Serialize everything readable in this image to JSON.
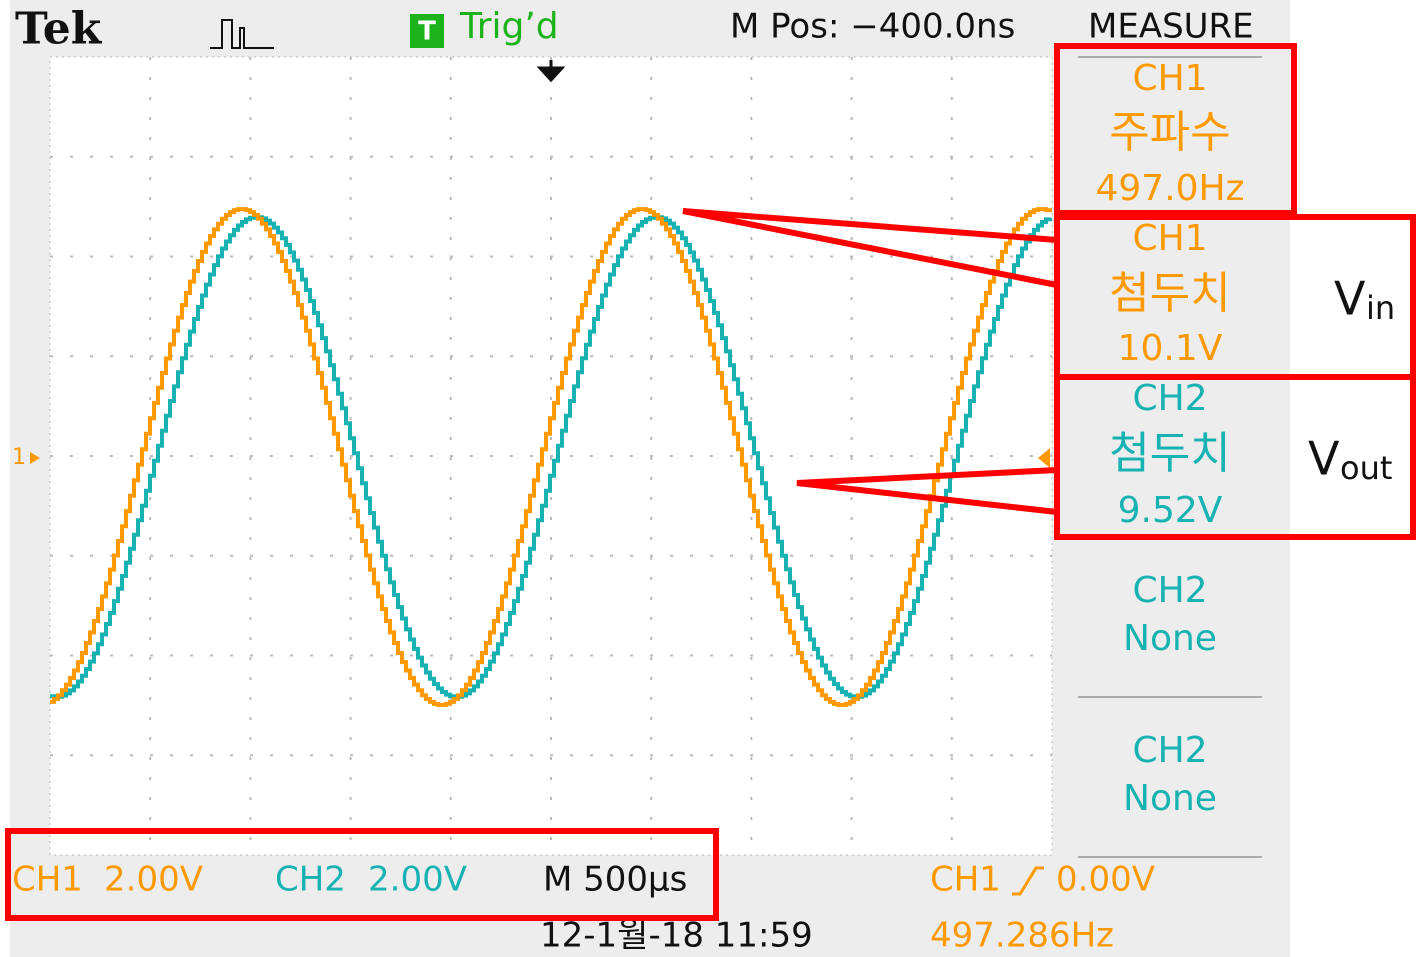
{
  "header": {
    "brand": "Tek",
    "trigger_icon": "T",
    "trigger_status": "Trig’d",
    "m_pos": "M Pos: −400.0ns",
    "menu_title": "MEASURE"
  },
  "markers": {
    "ch1_marker": "1"
  },
  "measurements": [
    {
      "channel": "CH1",
      "label": "주파수",
      "value": "497.0Hz"
    },
    {
      "channel": "CH1",
      "label": "첨두치",
      "value": "10.1V"
    },
    {
      "channel": "CH2",
      "label": "첨두치",
      "value": "9.52V"
    },
    {
      "channel": "CH2",
      "label": "None"
    },
    {
      "channel": "CH2",
      "label": "None"
    }
  ],
  "annotations": {
    "vin": {
      "main": "V",
      "sub": "in"
    },
    "vout": {
      "main": "V",
      "sub": "out"
    }
  },
  "footer": {
    "ch1_label": "CH1",
    "ch1_scale": "2.00V",
    "ch2_label": "CH2",
    "ch2_scale": "2.00V",
    "timebase": "M 500µs",
    "trigger_source": "CH1",
    "trigger_level": "0.00V",
    "date": "12-1월-18 11:59",
    "frequency": "497.286Hz"
  }
}
